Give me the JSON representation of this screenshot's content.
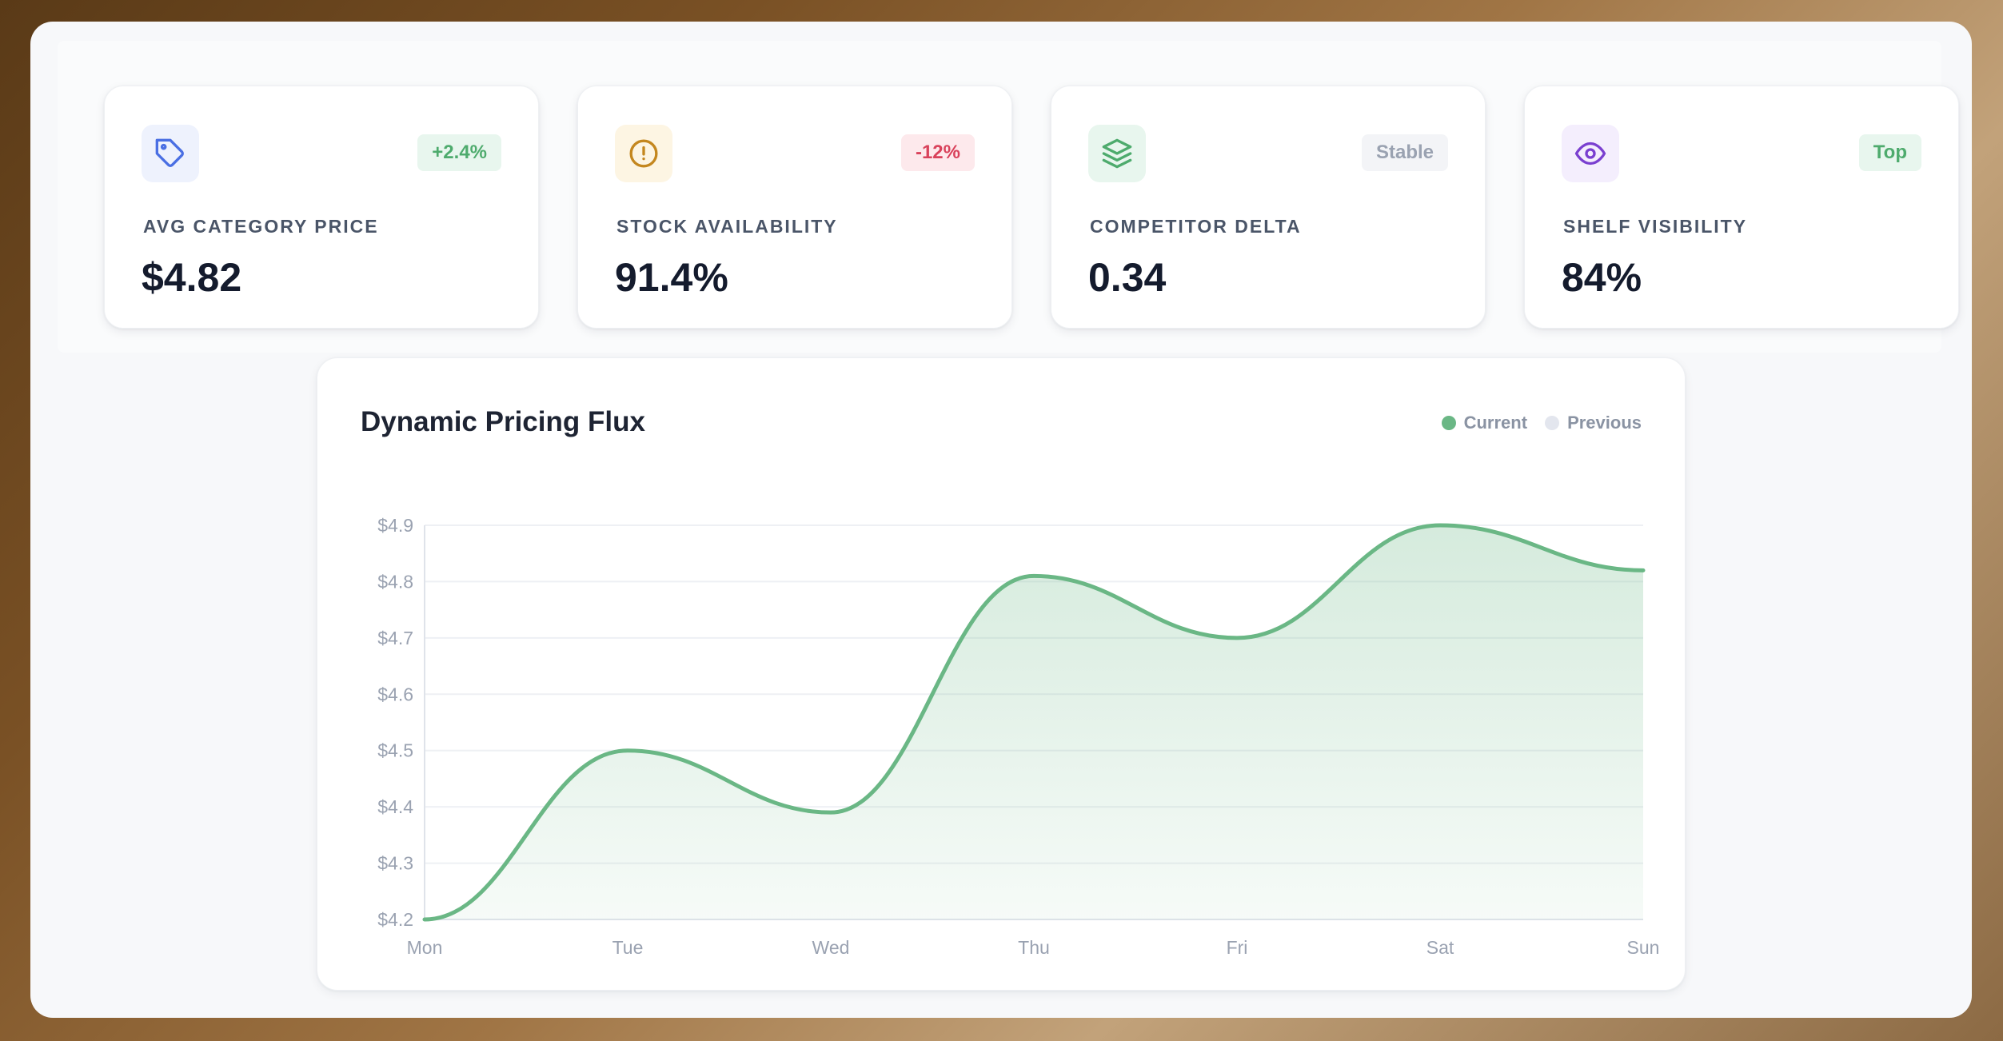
{
  "colors": {
    "accent_green": "#6ab785",
    "red": "#d9425b",
    "neutral": "#9aa2b1",
    "purple": "#7a3fd0"
  },
  "kpis": [
    {
      "icon": "tag-icon",
      "label": "AVG CATEGORY PRICE",
      "value": "$4.82",
      "badge": "+2.4%"
    },
    {
      "icon": "alert-circle-icon",
      "label": "STOCK AVAILABILITY",
      "value": "91.4%",
      "badge": "-12%"
    },
    {
      "icon": "layers-icon",
      "label": "COMPETITOR DELTA",
      "value": "0.34",
      "badge": "Stable"
    },
    {
      "icon": "eye-icon",
      "label": "SHELF VISIBILITY",
      "value": "84%",
      "badge": "Top"
    }
  ],
  "chart": {
    "title": "Dynamic Pricing Flux",
    "legend": [
      {
        "label": "Current",
        "color": "#6ab785"
      },
      {
        "label": "Previous",
        "color": "#e3e6ee"
      }
    ]
  },
  "chart_data": {
    "type": "area",
    "categories": [
      "Mon",
      "Tue",
      "Wed",
      "Thu",
      "Fri",
      "Sat",
      "Sun"
    ],
    "series": [
      {
        "name": "Current",
        "values": [
          4.2,
          4.5,
          4.39,
          4.81,
          4.7,
          4.9,
          4.82
        ]
      }
    ],
    "y_ticks": [
      "$4.2",
      "$4.3",
      "$4.4",
      "$4.5",
      "$4.6",
      "$4.7",
      "$4.8",
      "$4.9"
    ],
    "ylim": [
      4.2,
      4.9
    ],
    "grid": true,
    "legend": "top-right"
  }
}
